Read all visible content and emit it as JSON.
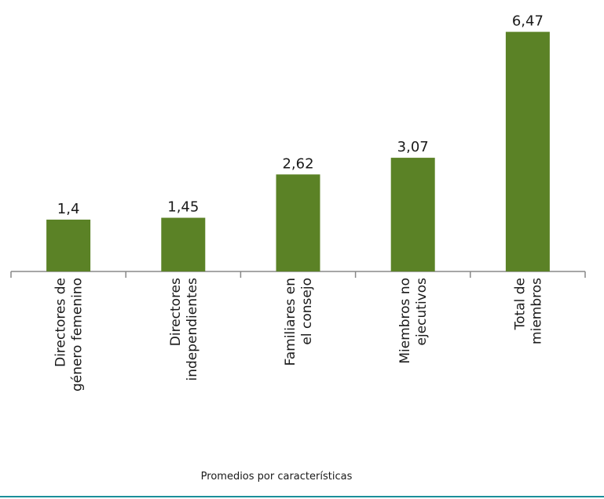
{
  "chart_data": {
    "type": "bar",
    "categories": [
      "Directores de\ngénero femenino",
      "Directores\nindependientes",
      "Familiares en\nel consejo",
      "Miembros no\nejecutivos",
      "Total de\nmiembros"
    ],
    "values": [
      1.4,
      1.45,
      2.62,
      3.07,
      6.47
    ],
    "value_labels": [
      "1,4",
      "1,45",
      "2,62",
      "3,07",
      "6,47"
    ],
    "color": "#5b8226",
    "ylim": [
      0,
      6.8
    ],
    "x_label": "Promedios por características"
  }
}
